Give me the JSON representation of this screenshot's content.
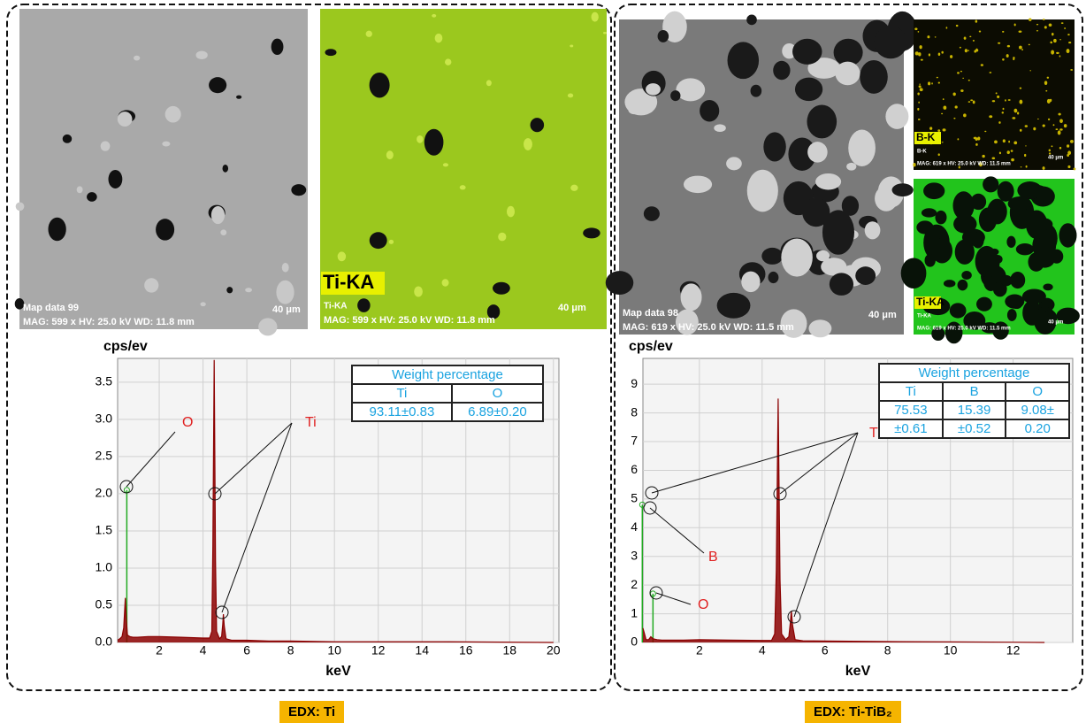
{
  "chart_data": [
    {
      "type": "area",
      "y_label": "cps/ev",
      "x_label": "keV",
      "color": "#8b0000",
      "grid": true,
      "xlim": [
        0.1,
        20.25
      ],
      "xticks": [
        2,
        4,
        6,
        8,
        10,
        12,
        14,
        16,
        18,
        20
      ],
      "ylim": [
        0,
        3.82
      ],
      "yticks": [
        {
          "value": 0,
          "label": "0.0"
        },
        0.5,
        {
          "value": 1,
          "label": "1.0"
        },
        1.5,
        {
          "value": 2,
          "label": "2.0"
        },
        2.5,
        {
          "value": 3,
          "label": "3.0"
        },
        3.5
      ],
      "x": [
        0.1,
        0.2,
        0.3,
        0.38,
        0.45,
        0.5,
        0.55,
        0.65,
        0.8,
        1,
        1.5,
        2,
        3,
        4,
        4.3,
        4.4,
        4.45,
        4.51,
        4.57,
        4.62,
        4.75,
        4.85,
        4.9,
        4.93,
        4.97,
        5.05,
        5.3,
        6,
        7,
        8,
        10,
        12,
        15,
        20
      ],
      "series": [
        {
          "values": [
            0.03,
            0.05,
            0.08,
            0.2,
            0.6,
            0.3,
            0.1,
            0.08,
            0.07,
            0.07,
            0.08,
            0.08,
            0.07,
            0.06,
            0.06,
            0.15,
            1.3,
            3.8,
            1.1,
            0.15,
            0.05,
            0.08,
            0.25,
            0.38,
            0.22,
            0.05,
            0.03,
            0.03,
            0.02,
            0.02,
            0.01,
            0.01,
            0.01,
            0
          ]
        }
      ],
      "element_lines": {
        "color": "#22aa22",
        "x": [
          0.52
        ],
        "values": [
          2.05
        ]
      },
      "annotations": [
        "O",
        "Ti"
      ],
      "table": {
        "title": "Weight percentage",
        "header": [
          "Ti",
          "O"
        ],
        "rows": [
          [
            "93.11±0.83",
            "6.89±0.20"
          ]
        ]
      }
    },
    {
      "type": "area",
      "y_label": "cps/ev",
      "x_label": "keV",
      "color": "#8b0000",
      "grid": true,
      "xlim": [
        0.2,
        13.9
      ],
      "xticks": [
        2,
        4,
        6,
        8,
        10,
        12
      ],
      "ylim": [
        0,
        9.9
      ],
      "yticks": [
        0,
        1,
        2,
        3,
        4,
        5,
        6,
        7,
        8,
        9
      ],
      "x": [
        0.2,
        0.25,
        0.3,
        0.38,
        0.45,
        0.5,
        0.55,
        0.65,
        0.8,
        1,
        1.5,
        2,
        3,
        4,
        4.3,
        4.4,
        4.45,
        4.51,
        4.57,
        4.62,
        4.75,
        4.85,
        4.9,
        4.93,
        4.97,
        5.05,
        5.3,
        6,
        8,
        10,
        12,
        13
      ],
      "series": [
        {
          "values": [
            0.5,
            0.3,
            0.1,
            0.1,
            0.2,
            0.15,
            0.12,
            0.1,
            0.08,
            0.08,
            0.08,
            0.1,
            0.08,
            0.07,
            0.07,
            0.3,
            2.5,
            8.5,
            2.2,
            0.3,
            0.1,
            0.2,
            0.7,
            1.1,
            0.6,
            0.1,
            0.06,
            0.05,
            0.03,
            0.02,
            0.01,
            0
          ]
        }
      ],
      "element_lines": {
        "color": "#22aa22",
        "x": [
          0.18,
          0.52
        ],
        "values": [
          4.8,
          1.7
        ]
      },
      "annotations": [
        "Ti",
        "B",
        "O"
      ],
      "table": {
        "title": "Weight percentage",
        "header": [
          "Ti",
          "B",
          "O"
        ],
        "rows": [
          [
            "75.53",
            "15.39",
            "9.08±"
          ],
          [
            "±0.61",
            "±0.52",
            "0.20"
          ]
        ]
      }
    }
  ],
  "panels": [
    {
      "caption": "EDX: Ti",
      "images": [
        {
          "texts": [
            "Map data 99",
            "40 μm",
            "MAG: 599 x HV: 25.0 kV WD: 11.8 mm"
          ]
        },
        {
          "texts": [
            "Ti-KA",
            "Ti-KA",
            "40 μm",
            "MAG: 599 x HV: 25.0 kV WD: 11.8 mm"
          ]
        }
      ]
    },
    {
      "caption": "EDX: Ti-TiB₂",
      "images": [
        {
          "texts": [
            "Map data 98",
            "40 μm",
            "MAG: 619 x HV: 25.0 kV WD: 11.5 mm"
          ]
        },
        {
          "texts": [
            "B-K",
            "B-K",
            "40 μm",
            "MAG: 619 x HV: 25.0 kV WD: 11.5 mm"
          ]
        },
        {
          "texts": [
            "Ti-KA",
            "Ti-KA",
            "40 μm",
            "MAG: 619 x HV: 25.0 kV WD: 11.5 mm"
          ]
        }
      ]
    }
  ]
}
